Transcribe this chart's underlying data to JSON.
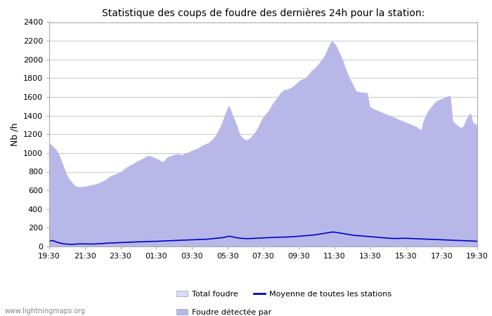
{
  "title": "Statistique des coups de foudre des dernières 24h pour la station:",
  "ylabel": "Nb /h",
  "ylim": [
    0,
    2400
  ],
  "yticks": [
    0,
    200,
    400,
    600,
    800,
    1000,
    1200,
    1400,
    1600,
    1800,
    2000,
    2200,
    2400
  ],
  "xtick_labels": [
    "19:30",
    "21:30",
    "23:30",
    "01:30",
    "03:30",
    "05:30",
    "07:30",
    "09:30",
    "11:30",
    "13:30",
    "15:30",
    "17:30",
    "19:30"
  ],
  "watermark": "www.lightningmaps.org",
  "legend_labels": [
    "Total foudre",
    "Foudre détectée par",
    "Moyenne de toutes les stations"
  ],
  "fill_color_light": "#dcdcf5",
  "fill_color_dark": "#b8b8e8",
  "line_color": "#0000cc",
  "grid_color": "#cccccc",
  "spine_color": "#aaaaaa",
  "background_color": "#ffffff",
  "total_foudre": [
    1100,
    1090,
    1060,
    1040,
    1000,
    950,
    880,
    820,
    760,
    720,
    690,
    660,
    645,
    640,
    640,
    640,
    645,
    650,
    655,
    660,
    665,
    670,
    680,
    690,
    700,
    715,
    730,
    750,
    760,
    770,
    780,
    790,
    800,
    820,
    840,
    855,
    870,
    880,
    895,
    910,
    920,
    935,
    945,
    960,
    970,
    970,
    960,
    950,
    940,
    930,
    910,
    910,
    940,
    960,
    970,
    975,
    985,
    990,
    990,
    980,
    990,
    1000,
    1010,
    1020,
    1030,
    1040,
    1050,
    1060,
    1080,
    1090,
    1100,
    1110,
    1130,
    1150,
    1180,
    1220,
    1270,
    1320,
    1390,
    1450,
    1510,
    1460,
    1400,
    1340,
    1280,
    1200,
    1170,
    1150,
    1140,
    1150,
    1170,
    1200,
    1230,
    1270,
    1320,
    1370,
    1400,
    1430,
    1460,
    1500,
    1540,
    1570,
    1600,
    1640,
    1660,
    1680,
    1680,
    1690,
    1700,
    1720,
    1740,
    1760,
    1780,
    1790,
    1800,
    1820,
    1850,
    1880,
    1900,
    1920,
    1950,
    1980,
    2010,
    2050,
    2100,
    2160,
    2200,
    2180,
    2150,
    2100,
    2050,
    1990,
    1920,
    1860,
    1800,
    1760,
    1710,
    1660,
    1660,
    1650,
    1650,
    1650,
    1640,
    1500,
    1480,
    1470,
    1460,
    1450,
    1440,
    1430,
    1420,
    1410,
    1400,
    1390,
    1380,
    1370,
    1360,
    1350,
    1340,
    1330,
    1320,
    1310,
    1300,
    1290,
    1280,
    1260,
    1250,
    1350,
    1400,
    1450,
    1480,
    1510,
    1540,
    1560,
    1570,
    1580,
    1590,
    1600,
    1610,
    1610,
    1350,
    1320,
    1300,
    1280,
    1270,
    1300,
    1360,
    1400,
    1430,
    1330,
    1315,
    1300
  ],
  "moyenne": [
    50,
    65,
    60,
    50,
    42,
    36,
    30,
    27,
    25,
    24,
    23,
    24,
    26,
    27,
    28,
    28,
    27,
    27,
    26,
    26,
    27,
    28,
    30,
    31,
    32,
    34,
    36,
    37,
    38,
    39,
    40,
    41,
    42,
    43,
    44,
    45,
    46,
    47,
    48,
    49,
    50,
    50,
    51,
    52,
    53,
    54,
    55,
    55,
    56,
    57,
    58,
    59,
    60,
    61,
    62,
    63,
    64,
    65,
    66,
    67,
    68,
    69,
    70,
    71,
    72,
    73,
    74,
    75,
    76,
    77,
    78,
    80,
    82,
    85,
    88,
    90,
    92,
    95,
    100,
    105,
    110,
    105,
    100,
    95,
    90,
    88,
    86,
    85,
    84,
    85,
    86,
    87,
    88,
    89,
    90,
    92,
    93,
    94,
    95,
    96,
    97,
    98,
    99,
    100,
    100,
    101,
    102,
    103,
    104,
    106,
    108,
    110,
    112,
    114,
    116,
    118,
    120,
    122,
    125,
    128,
    132,
    136,
    140,
    144,
    148,
    152,
    155,
    152,
    148,
    144,
    140,
    136,
    132,
    128,
    124,
    120,
    118,
    116,
    114,
    112,
    110,
    108,
    106,
    104,
    102,
    100,
    98,
    96,
    94,
    92,
    90,
    88,
    87,
    86,
    85,
    86,
    87,
    88,
    88,
    87,
    86,
    85,
    84,
    83,
    82,
    81,
    80,
    79,
    78,
    77,
    76,
    75,
    74,
    73,
    72,
    71,
    70,
    69,
    68,
    67,
    66,
    65,
    64,
    63,
    62,
    61,
    60,
    59,
    58,
    57,
    56
  ]
}
